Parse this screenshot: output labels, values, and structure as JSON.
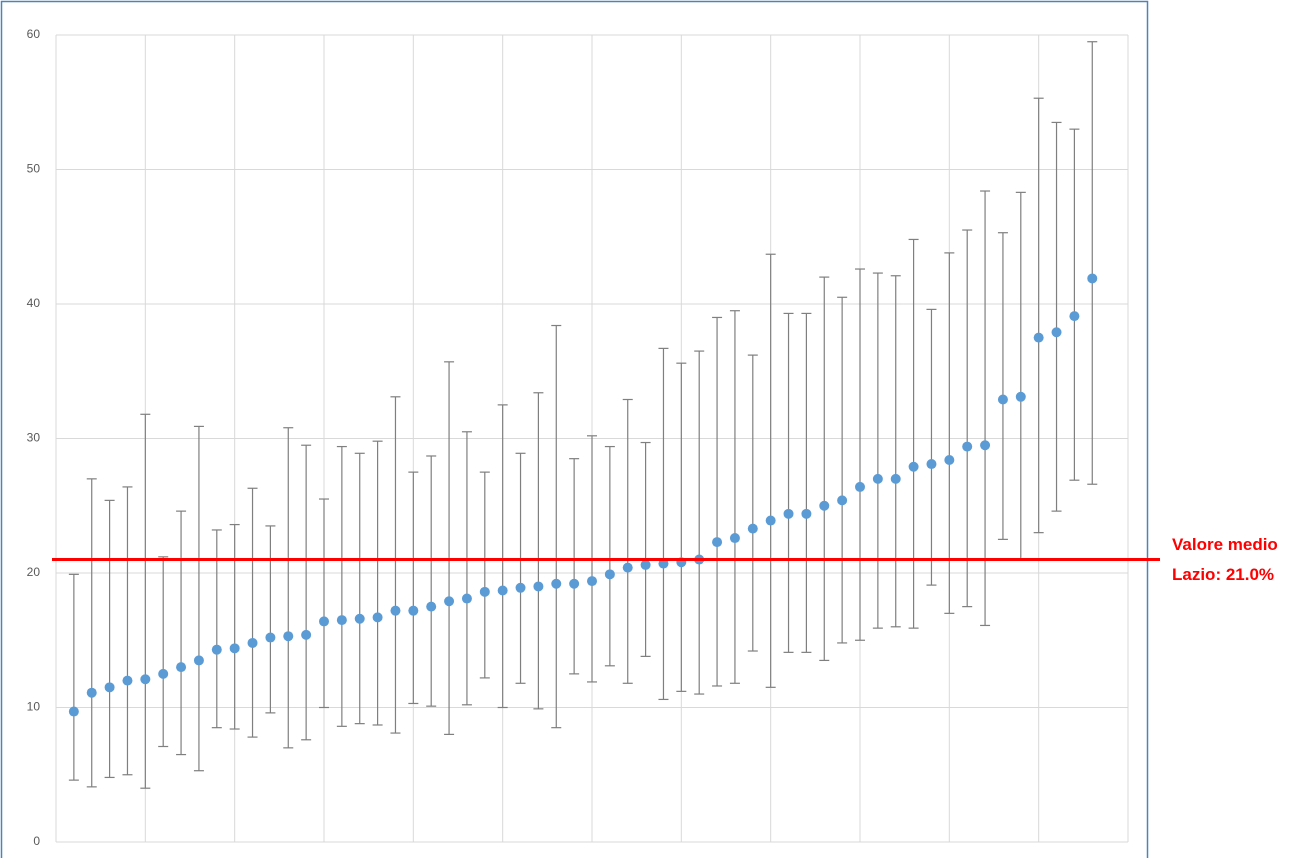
{
  "chart_data": {
    "type": "errorbar",
    "xlim": [
      0,
      60
    ],
    "xticks": [
      0,
      5,
      10,
      15,
      20,
      25,
      30,
      35,
      40,
      45,
      50,
      55,
      60
    ],
    "ylim": [
      0,
      60
    ],
    "yticks": [
      0,
      10,
      20,
      30,
      40,
      50,
      60
    ],
    "grid": true,
    "series": [
      {
        "color": "#5b9bd5",
        "error_color": "#7f7f7f",
        "x": [
          1,
          2,
          3,
          4,
          5,
          6,
          7,
          8,
          9,
          10,
          11,
          12,
          13,
          14,
          15,
          16,
          17,
          18,
          19,
          20,
          21,
          22,
          23,
          24,
          25,
          26,
          27,
          28,
          29,
          30,
          31,
          32,
          33,
          34,
          35,
          36,
          37,
          38,
          39,
          40,
          41,
          42,
          43,
          44,
          45,
          46,
          47,
          48,
          49,
          50,
          51,
          52,
          53,
          54,
          55,
          56,
          57,
          58
        ],
        "values": [
          9.7,
          11.1,
          11.5,
          12.0,
          12.1,
          12.5,
          13.0,
          13.5,
          14.3,
          14.4,
          14.8,
          15.2,
          15.3,
          15.4,
          16.4,
          16.5,
          16.6,
          16.7,
          17.2,
          17.2,
          17.5,
          17.9,
          18.1,
          18.6,
          18.7,
          18.9,
          19.0,
          19.2,
          19.2,
          19.4,
          19.9,
          20.4,
          20.6,
          20.7,
          20.8,
          21.0,
          22.3,
          22.6,
          23.3,
          23.9,
          24.4,
          24.4,
          25.0,
          25.4,
          26.4,
          27.0,
          27.0,
          27.9,
          28.1,
          28.4,
          29.4,
          29.5,
          32.9,
          33.1,
          37.5,
          37.9,
          39.1,
          41.9
        ],
        "upper": [
          19.9,
          27.0,
          25.4,
          26.4,
          31.8,
          21.2,
          24.6,
          30.9,
          23.2,
          23.6,
          26.3,
          23.5,
          30.8,
          29.5,
          25.5,
          29.4,
          28.9,
          29.8,
          33.1,
          27.5,
          28.7,
          35.7,
          30.5,
          27.5,
          32.5,
          28.9,
          33.4,
          38.4,
          28.5,
          30.2,
          29.4,
          32.9,
          29.7,
          36.7,
          35.6,
          36.5,
          39.0,
          39.5,
          36.2,
          43.7,
          39.3,
          39.3,
          42.0,
          40.5,
          42.6,
          42.3,
          42.1,
          44.8,
          39.6,
          43.8,
          45.5,
          48.4,
          45.3,
          48.3,
          55.3,
          53.5,
          53.0,
          59.5
        ],
        "lower": [
          4.6,
          4.1,
          4.8,
          5.0,
          4.0,
          7.1,
          6.5,
          5.3,
          8.5,
          8.4,
          7.8,
          9.6,
          7.0,
          7.6,
          10.0,
          8.6,
          8.8,
          8.7,
          8.1,
          10.3,
          10.1,
          8.0,
          10.2,
          12.2,
          10.0,
          11.8,
          9.9,
          8.5,
          12.5,
          11.9,
          13.1,
          11.8,
          13.8,
          10.6,
          11.2,
          11.0,
          11.6,
          11.8,
          14.2,
          11.5,
          14.1,
          14.1,
          13.5,
          14.8,
          15.0,
          15.9,
          16.0,
          15.9,
          19.1,
          17.0,
          17.5,
          16.1,
          22.5,
          21.0,
          23.0,
          24.6,
          26.9,
          26.6
        ]
      }
    ],
    "reference_line": {
      "value": 21.0,
      "color": "#ff0000",
      "label": [
        "Valore medio",
        "Lazio: 21.0%"
      ]
    }
  }
}
